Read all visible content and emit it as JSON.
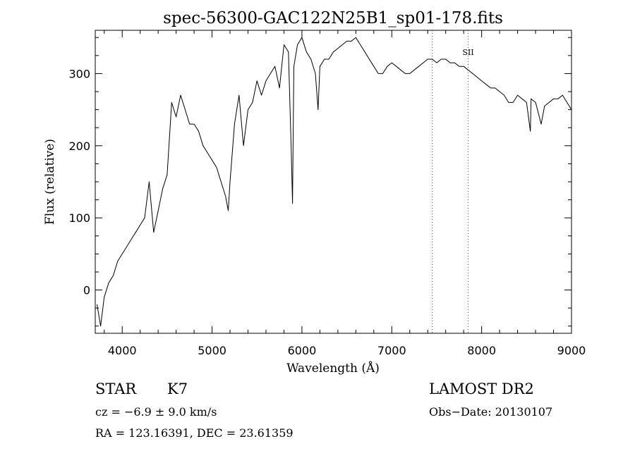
{
  "chart_data": {
    "type": "line",
    "title": "spec-56300-GAC122N25B1_sp01-178.fits",
    "xlabel": "Wavelength (Å)",
    "ylabel": "Flux (relative)",
    "xlim": [
      3700,
      9000
    ],
    "ylim": [
      -60,
      360
    ],
    "xticks": [
      4000,
      5000,
      6000,
      7000,
      8000,
      9000
    ],
    "yticks": [
      0,
      100,
      200,
      300
    ],
    "grid": false,
    "line_markers": [
      {
        "x": 7450,
        "label": ""
      },
      {
        "x": 7850,
        "label": "SII"
      }
    ],
    "series": [
      {
        "x": [
          3720,
          3760,
          3800,
          3850,
          3900,
          3950,
          4000,
          4050,
          4100,
          4150,
          4200,
          4250,
          4300,
          4350,
          4400,
          4450,
          4500,
          4550,
          4600,
          4650,
          4700,
          4750,
          4800,
          4850,
          4900,
          4950,
          5000,
          5050,
          5100,
          5150,
          5180,
          5200,
          5250,
          5300,
          5350,
          5400,
          5450,
          5500,
          5550,
          5600,
          5650,
          5700,
          5750,
          5800,
          5850,
          5880,
          5895,
          5910,
          5950,
          6000,
          6050,
          6100,
          6150,
          6180,
          6200,
          6250,
          6300,
          6350,
          6400,
          6450,
          6500,
          6550,
          6600,
          6650,
          6700,
          6750,
          6800,
          6850,
          6900,
          6950,
          7000,
          7050,
          7100,
          7150,
          7200,
          7250,
          7300,
          7350,
          7400,
          7450,
          7500,
          7550,
          7600,
          7650,
          7700,
          7750,
          7800,
          7850,
          7900,
          7950,
          8000,
          8050,
          8100,
          8150,
          8200,
          8250,
          8300,
          8350,
          8400,
          8450,
          8500,
          8542,
          8550,
          8600,
          8662,
          8700,
          8750,
          8800,
          8850,
          8900,
          8950,
          9000
        ],
        "y": [
          -20,
          -50,
          -10,
          10,
          20,
          40,
          50,
          60,
          70,
          80,
          90,
          100,
          150,
          80,
          110,
          140,
          160,
          260,
          240,
          270,
          250,
          230,
          230,
          220,
          200,
          190,
          180,
          170,
          150,
          130,
          110,
          150,
          230,
          270,
          200,
          250,
          260,
          290,
          270,
          290,
          300,
          310,
          280,
          340,
          330,
          200,
          120,
          310,
          340,
          350,
          330,
          320,
          300,
          250,
          310,
          320,
          320,
          330,
          335,
          340,
          345,
          345,
          350,
          340,
          330,
          320,
          310,
          300,
          300,
          310,
          315,
          310,
          305,
          300,
          300,
          305,
          310,
          315,
          320,
          320,
          315,
          320,
          320,
          315,
          315,
          310,
          310,
          305,
          300,
          295,
          290,
          285,
          280,
          280,
          275,
          270,
          260,
          260,
          270,
          265,
          260,
          220,
          265,
          260,
          230,
          255,
          260,
          265,
          265,
          270,
          260,
          250
        ]
      }
    ]
  },
  "info": {
    "object_class": "STAR",
    "subclass": "K7",
    "survey": "LAMOST DR2",
    "cz": "cz = −6.9 ± 9.0 km/s",
    "obs_date": "Obs−Date: 20130107",
    "coords": "RA = 123.16391, DEC =  23.61359"
  }
}
